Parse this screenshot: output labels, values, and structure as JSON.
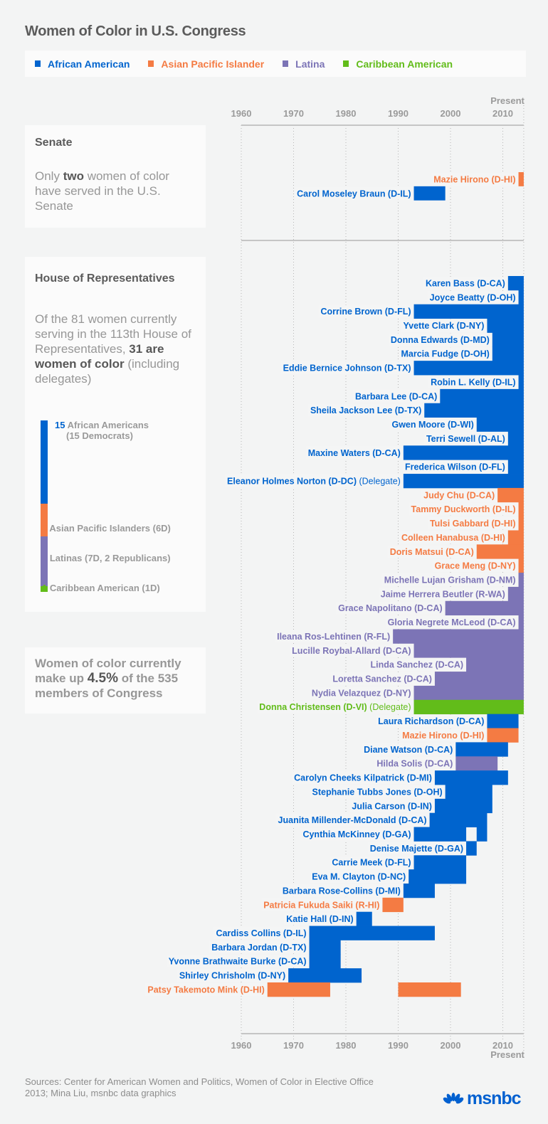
{
  "title": "Women of Color in U.S. Congress",
  "legend": [
    {
      "label": "African American",
      "color": "#0064ce"
    },
    {
      "label": "Asian Pacific Islander",
      "color": "#f47b43"
    },
    {
      "label": "Latina",
      "color": "#7c74b6"
    },
    {
      "label": "Caribbean American",
      "color": "#62bc1a"
    }
  ],
  "senate_panel": {
    "heading": "Senate",
    "text_pre": "Only ",
    "text_bold": "two",
    "text_post": " women of color have served in the U.S. Senate"
  },
  "house_panel": {
    "heading": "House of Representatives",
    "text_pre": "Of the 81 women currently serving in the 113th House of Representatives, ",
    "text_bold": "31 are women of color",
    "text_post": " (including delegates)",
    "breakdown": [
      {
        "count": "15",
        "label": "African Americans",
        "sub": "(15 Democrats)",
        "group": "African American",
        "value": 15
      },
      {
        "count": "6",
        "label": "Asian Pacific Islanders (6D)",
        "sub": "",
        "group": "Asian Pacific Islander",
        "value": 6
      },
      {
        "count": "9",
        "label": "Latinas (7D, 2 Republicans)",
        "sub": "",
        "group": "Latina",
        "value": 9
      },
      {
        "count": "1",
        "label": "Caribbean American (1D)",
        "sub": "",
        "group": "Caribbean American",
        "value": 1
      }
    ]
  },
  "summary_panel": {
    "text_pre": "Women of color currently make up ",
    "text_bold": "4.5%",
    "text_post": " of the 535 members of Congress"
  },
  "sources": "Sources: Center for American Women and Politics, Women of Color in Elective Office 2013; Mina Liu, msnbc data graphics",
  "logo": "msnbc",
  "chart_data": {
    "type": "bar",
    "subtype": "timeline-gantt",
    "title": "Women of Color in U.S. Congress",
    "xlabel": "",
    "ylabel": "",
    "x_ticks": [
      "1960",
      "1970",
      "1980",
      "1990",
      "2000",
      "2010"
    ],
    "x_end_label": "Present",
    "xlim": [
      1960,
      2014
    ],
    "grid": true,
    "legend_position": "top",
    "senate": [
      {
        "name": "Mazie Hirono (D-HI)",
        "group": "Asian Pacific Islander",
        "terms": [
          [
            2013,
            2014
          ]
        ]
      },
      {
        "name": "Carol Moseley Braun (D-IL)",
        "group": "African American",
        "terms": [
          [
            1993,
            1999
          ]
        ]
      }
    ],
    "house": [
      {
        "name": "Karen Bass (D-CA)",
        "group": "African American",
        "terms": [
          [
            2011,
            2014
          ]
        ]
      },
      {
        "name": "Joyce Beatty (D-OH)",
        "group": "African American",
        "terms": [
          [
            2013,
            2014
          ]
        ]
      },
      {
        "name": "Corrine Brown (D-FL)",
        "group": "African American",
        "terms": [
          [
            1993,
            2014
          ]
        ]
      },
      {
        "name": "Yvette Clark (D-NY)",
        "group": "African American",
        "terms": [
          [
            2007,
            2014
          ]
        ]
      },
      {
        "name": "Donna Edwards (D-MD)",
        "group": "African American",
        "terms": [
          [
            2008,
            2014
          ]
        ]
      },
      {
        "name": "Marcia Fudge (D-OH)",
        "group": "African American",
        "terms": [
          [
            2008,
            2014
          ]
        ]
      },
      {
        "name": "Eddie Bernice Johnson (D-TX)",
        "group": "African American",
        "terms": [
          [
            1993,
            2014
          ]
        ]
      },
      {
        "name": "Robin L. Kelly (D-IL)",
        "group": "African American",
        "terms": [
          [
            2013,
            2014
          ]
        ]
      },
      {
        "name": "Barbara Lee (D-CA)",
        "group": "African American",
        "terms": [
          [
            1998,
            2014
          ]
        ]
      },
      {
        "name": "Sheila Jackson Lee (D-TX)",
        "group": "African American",
        "terms": [
          [
            1995,
            2014
          ]
        ]
      },
      {
        "name": "Gwen Moore (D-WI)",
        "group": "African American",
        "terms": [
          [
            2005,
            2014
          ]
        ]
      },
      {
        "name": "Terri Sewell (D-AL)",
        "group": "African American",
        "terms": [
          [
            2011,
            2014
          ]
        ]
      },
      {
        "name": "Maxine Waters (D-CA)",
        "group": "African American",
        "terms": [
          [
            1991,
            2014
          ]
        ]
      },
      {
        "name": "Frederica Wilson (D-FL)",
        "group": "African American",
        "terms": [
          [
            2011,
            2014
          ]
        ]
      },
      {
        "name": "Eleanor Holmes Norton (D-DC)",
        "note": "(Delegate)",
        "group": "African American",
        "terms": [
          [
            1991,
            2014
          ]
        ]
      },
      {
        "name": "Judy Chu (D-CA)",
        "group": "Asian Pacific Islander",
        "terms": [
          [
            2009,
            2014
          ]
        ]
      },
      {
        "name": "Tammy Duckworth (D-IL)",
        "group": "Asian Pacific Islander",
        "terms": [
          [
            2013,
            2014
          ]
        ]
      },
      {
        "name": "Tulsi Gabbard (D-HI)",
        "group": "Asian Pacific Islander",
        "terms": [
          [
            2013,
            2014
          ]
        ]
      },
      {
        "name": "Colleen Hanabusa (D-HI)",
        "group": "Asian Pacific Islander",
        "terms": [
          [
            2011,
            2014
          ]
        ]
      },
      {
        "name": "Doris Matsui (D-CA)",
        "group": "Asian Pacific Islander",
        "terms": [
          [
            2005,
            2014
          ]
        ]
      },
      {
        "name": "Grace Meng (D-NY)",
        "group": "Asian Pacific Islander",
        "terms": [
          [
            2013,
            2014
          ]
        ]
      },
      {
        "name": "Michelle Lujan Grisham (D-NM)",
        "group": "Latina",
        "terms": [
          [
            2013,
            2014
          ]
        ]
      },
      {
        "name": "Jaime Herrera Beutler (R-WA)",
        "group": "Latina",
        "terms": [
          [
            2011,
            2014
          ]
        ]
      },
      {
        "name": "Grace Napolitano (D-CA)",
        "group": "Latina",
        "terms": [
          [
            1999,
            2014
          ]
        ]
      },
      {
        "name": "Gloria Negrete McLeod (D-CA)",
        "group": "Latina",
        "terms": [
          [
            2013,
            2014
          ]
        ]
      },
      {
        "name": "Ileana Ros-Lehtinen (R-FL)",
        "group": "Latina",
        "terms": [
          [
            1989,
            2014
          ]
        ]
      },
      {
        "name": "Lucille Roybal-Allard (D-CA)",
        "group": "Latina",
        "terms": [
          [
            1993,
            2014
          ]
        ]
      },
      {
        "name": "Linda Sanchez (D-CA)",
        "group": "Latina",
        "terms": [
          [
            2003,
            2014
          ]
        ]
      },
      {
        "name": "Loretta Sanchez (D-CA)",
        "group": "Latina",
        "terms": [
          [
            1997,
            2014
          ]
        ]
      },
      {
        "name": "Nydia Velazquez (D-NY)",
        "group": "Latina",
        "terms": [
          [
            1993,
            2014
          ]
        ]
      },
      {
        "name": "Donna Christensen (D-VI)",
        "note": "(Delegate)",
        "group": "Caribbean American",
        "terms": [
          [
            1993,
            2014
          ]
        ]
      },
      {
        "name": "Laura Richardson (D-CA)",
        "group": "African American",
        "terms": [
          [
            2007,
            2013
          ]
        ]
      },
      {
        "name": "Mazie Hirono (D-HI)",
        "group": "Asian Pacific Islander",
        "terms": [
          [
            2007,
            2013
          ]
        ]
      },
      {
        "name": "Diane Watson (D-CA)",
        "group": "African American",
        "terms": [
          [
            2001,
            2011
          ]
        ]
      },
      {
        "name": "Hilda Solis (D-CA)",
        "group": "Latina",
        "terms": [
          [
            2001,
            2009
          ]
        ]
      },
      {
        "name": "Carolyn Cheeks Kilpatrick (D-MI)",
        "group": "African American",
        "terms": [
          [
            1997,
            2011
          ]
        ]
      },
      {
        "name": "Stephanie Tubbs Jones (D-OH)",
        "group": "African American",
        "terms": [
          [
            1999,
            2008
          ]
        ]
      },
      {
        "name": "Julia Carson (D-IN)",
        "group": "African American",
        "terms": [
          [
            1997,
            2008
          ]
        ]
      },
      {
        "name": "Juanita Millender-McDonald (D-CA)",
        "group": "African American",
        "terms": [
          [
            1996,
            2007
          ]
        ]
      },
      {
        "name": "Cynthia McKinney (D-GA)",
        "group": "African American",
        "terms": [
          [
            1993,
            2003
          ],
          [
            2005,
            2007
          ]
        ]
      },
      {
        "name": "Denise Majette (D-GA)",
        "group": "African American",
        "terms": [
          [
            2003,
            2005
          ]
        ]
      },
      {
        "name": "Carrie Meek (D-FL)",
        "group": "African American",
        "terms": [
          [
            1993,
            2003
          ]
        ]
      },
      {
        "name": "Eva M. Clayton (D-NC)",
        "group": "African American",
        "terms": [
          [
            1992,
            2003
          ]
        ]
      },
      {
        "name": "Barbara Rose-Collins (D-MI)",
        "group": "African American",
        "terms": [
          [
            1991,
            1997
          ]
        ]
      },
      {
        "name": "Patricia Fukuda Saiki (R-HI)",
        "group": "Asian Pacific Islander",
        "terms": [
          [
            1987,
            1991
          ]
        ]
      },
      {
        "name": "Katie Hall (D-IN)",
        "group": "African American",
        "terms": [
          [
            1982,
            1985
          ]
        ]
      },
      {
        "name": "Cardiss Collins (D-IL)",
        "group": "African American",
        "terms": [
          [
            1973,
            1997
          ]
        ]
      },
      {
        "name": "Barbara Jordan (D-TX)",
        "group": "African American",
        "terms": [
          [
            1973,
            1979
          ]
        ]
      },
      {
        "name": "Yvonne Brathwaite Burke (D-CA)",
        "group": "African American",
        "terms": [
          [
            1973,
            1979
          ]
        ]
      },
      {
        "name": "Shirley Chrisholm (D-NY)",
        "group": "African American",
        "terms": [
          [
            1969,
            1983
          ]
        ]
      },
      {
        "name": "Patsy Takemoto Mink (D-HI)",
        "group": "Asian Pacific Islander",
        "terms": [
          [
            1965,
            1977
          ],
          [
            1990,
            2002
          ]
        ]
      }
    ]
  }
}
